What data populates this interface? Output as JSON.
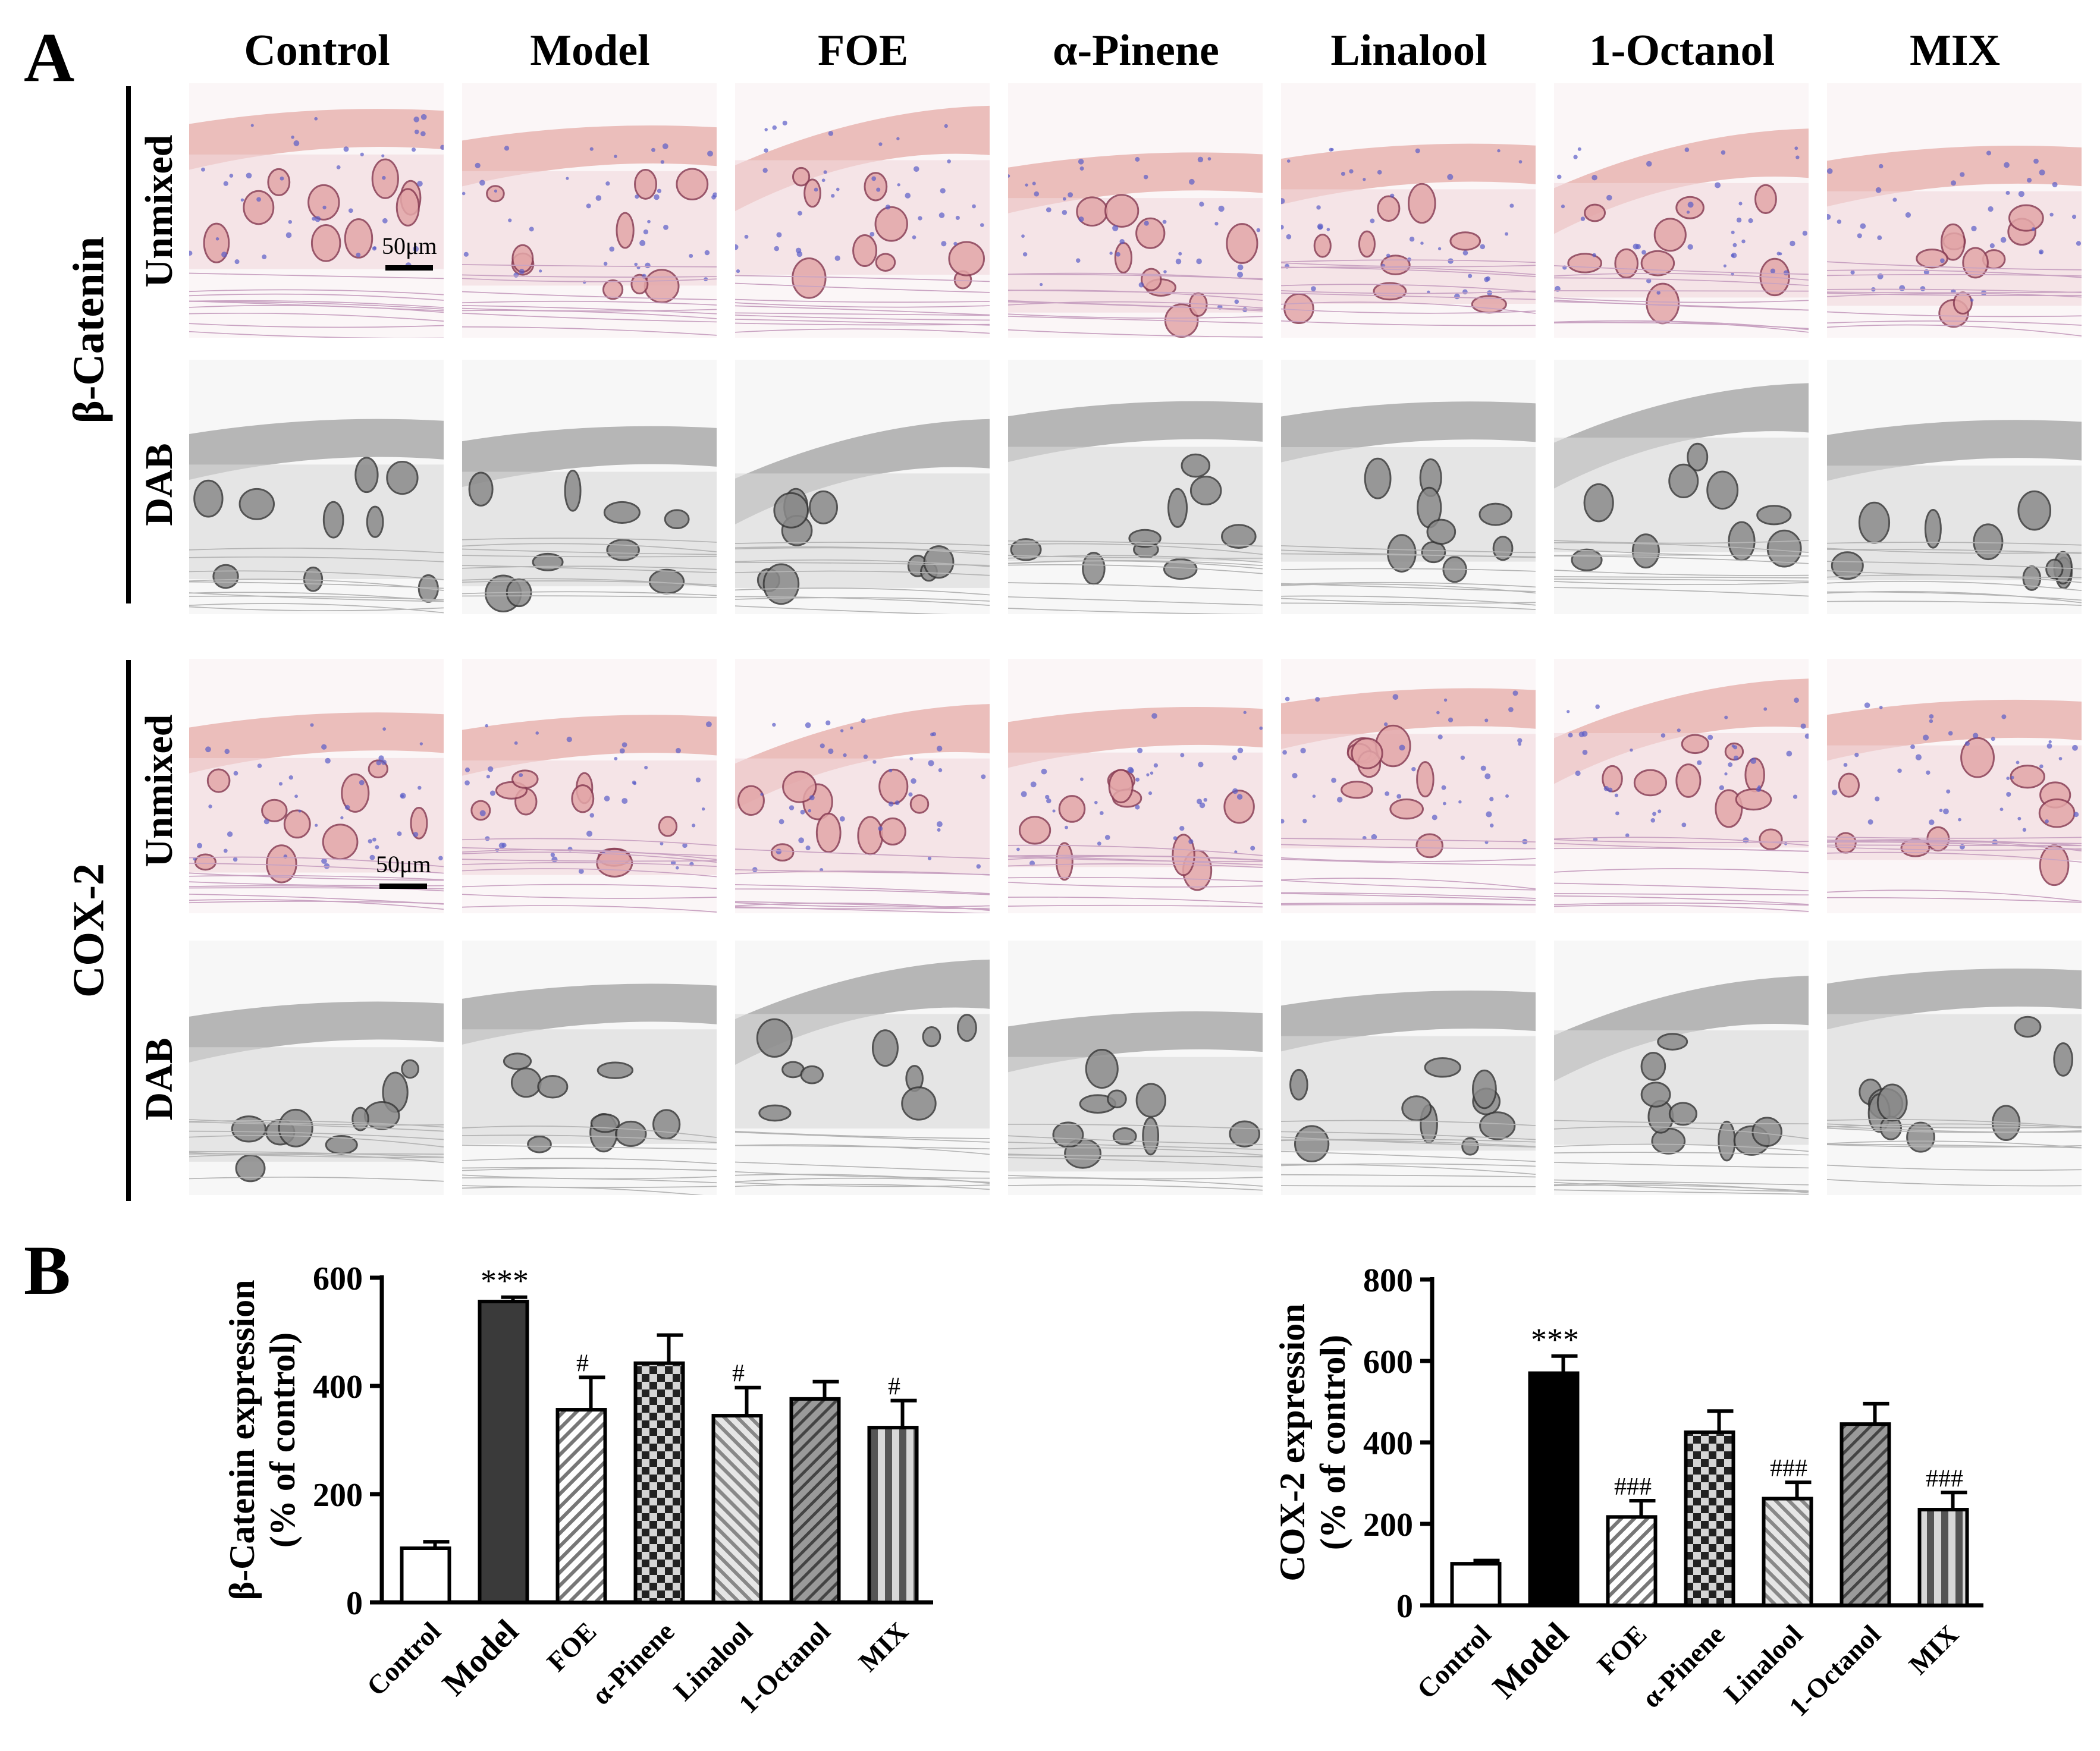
{
  "panel_a": {
    "letter": "A",
    "columns": [
      "Control",
      "Model",
      "FOE",
      "α-Pinene",
      "Linalool",
      "1-Octanol",
      "MIX"
    ],
    "groups": [
      {
        "label": "β-Catenin",
        "rows": [
          "Unmixed",
          "DAB"
        ],
        "scale_label": "50μm"
      },
      {
        "label": "COX-2",
        "rows": [
          "Unmixed",
          "DAB"
        ],
        "scale_label": "50μm"
      }
    ],
    "colors": {
      "tissue_pink": "#e8b4b0",
      "nuclei_blue": "#5a5cc8",
      "dab_gray": "#6e6e6e"
    }
  },
  "panel_b": {
    "letter": "B"
  },
  "chart_data": [
    {
      "type": "bar",
      "categories": [
        "Control",
        "Model",
        "FOE",
        "α-Pinene",
        "Linalool",
        "1-Octanol",
        "MIX"
      ],
      "values": [
        100,
        556,
        356,
        442,
        345,
        376,
        323
      ],
      "errors": [
        12,
        8,
        60,
        52,
        52,
        32,
        50
      ],
      "annotations": [
        "",
        "***",
        "#",
        "",
        "#",
        "",
        "#"
      ],
      "fills": [
        "white",
        "dark",
        "diagonal",
        "checker",
        "diagonal-gray",
        "diagonal-dark",
        "vertical"
      ],
      "xlabel": "",
      "ylabel": "β-Catenin expression (% of control)",
      "ylim": [
        0,
        600
      ],
      "yticks": [
        0,
        200,
        400,
        600
      ],
      "grid": false
    },
    {
      "type": "bar",
      "categories": [
        "Control",
        "Model",
        "FOE",
        "α-Pinene",
        "Linalool",
        "1-Octanol",
        "MIX"
      ],
      "values": [
        102,
        570,
        217,
        425,
        262,
        445,
        235
      ],
      "errors": [
        8,
        42,
        40,
        52,
        40,
        50,
        42
      ],
      "annotations": [
        "",
        "***",
        "###",
        "",
        "###",
        "",
        "###"
      ],
      "fills": [
        "white",
        "black",
        "diagonal",
        "checker",
        "diagonal-gray",
        "diagonal-dark",
        "vertical"
      ],
      "xlabel": "",
      "ylabel": "COX-2 expression (% of control)",
      "ylim": [
        0,
        800
      ],
      "yticks": [
        0,
        200,
        400,
        600,
        800
      ],
      "grid": false
    }
  ]
}
